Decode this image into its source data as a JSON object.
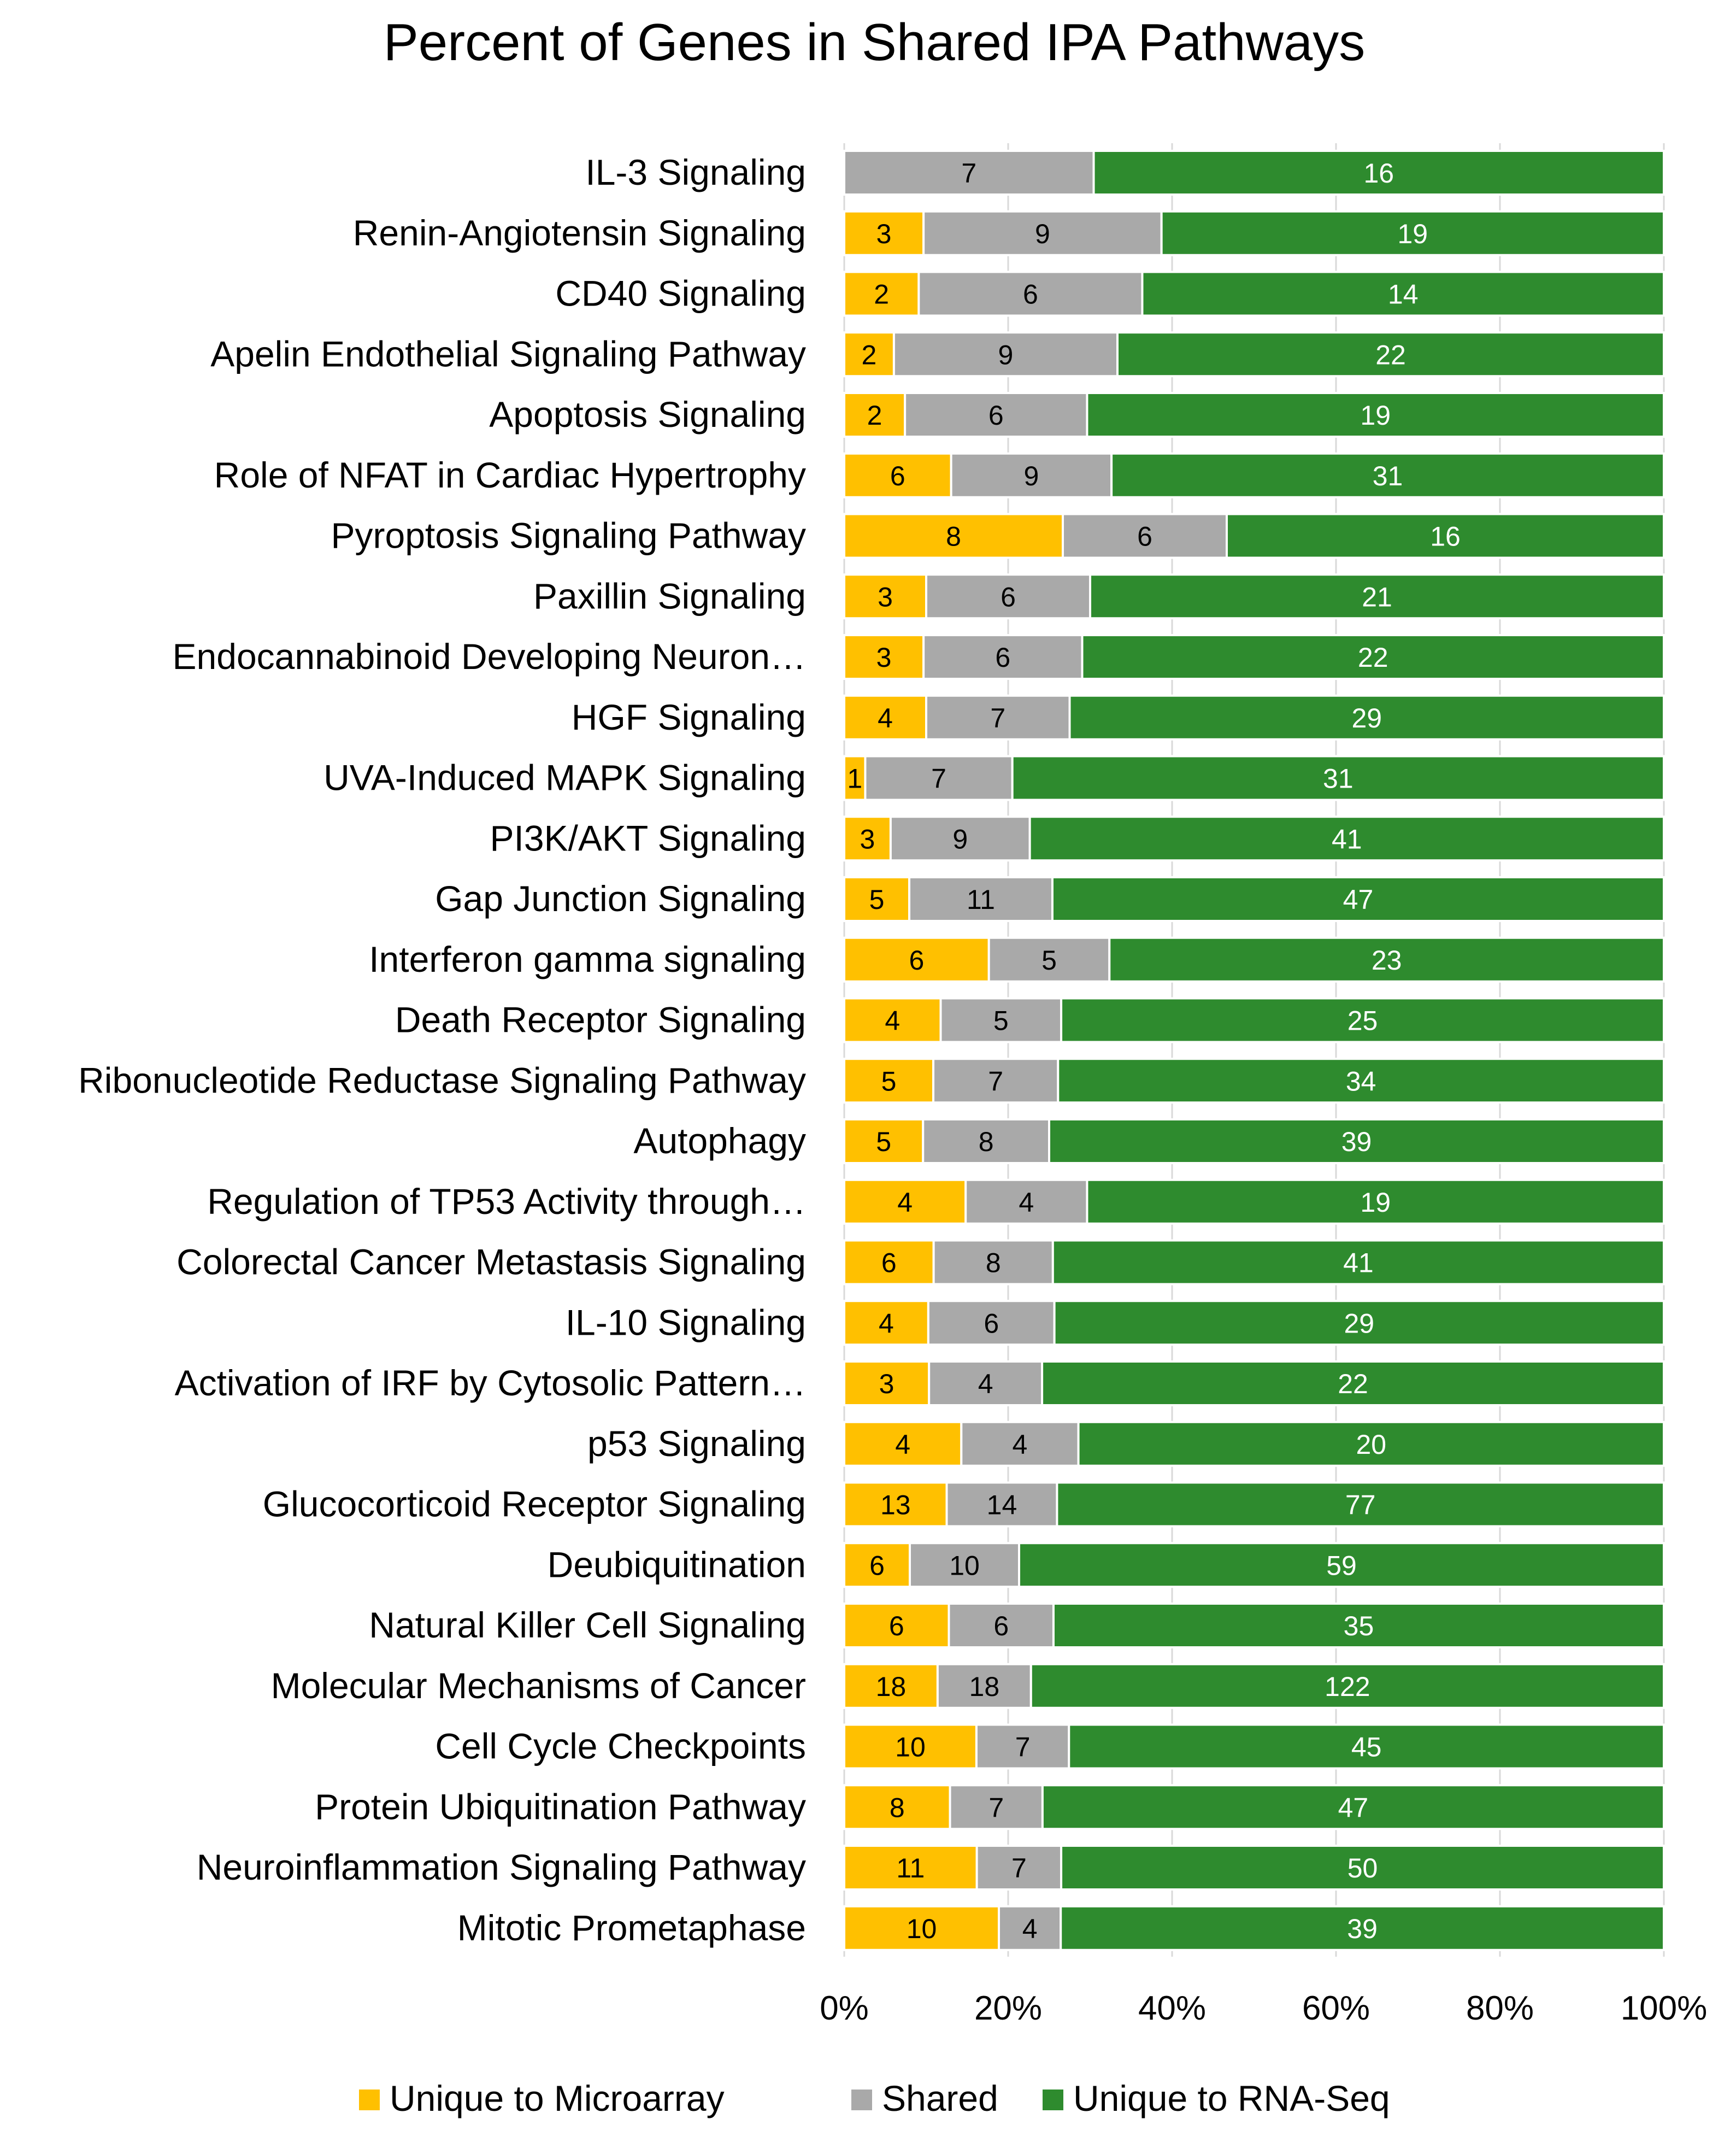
{
  "chart_data": {
    "type": "bar",
    "orientation": "horizontal",
    "stacked": "percent",
    "title": "Percent of Genes in Shared IPA Pathways",
    "xlabel": "",
    "ylabel": "",
    "xlim": [
      0,
      100
    ],
    "x_ticks": [
      "0%",
      "20%",
      "40%",
      "60%",
      "80%",
      "100%"
    ],
    "legend_position": "bottom",
    "grid": true,
    "colors": {
      "Unique to Microarray": "#FFC000",
      "Shared": "#A9A9A9",
      "Unique to RNA-Seq": "#2E8B2E",
      "grid": "#D9D9D9",
      "text": "#000000",
      "label_dark": "#000000",
      "label_light": "#FFFFFF"
    },
    "categories": [
      "IL-3 Signaling",
      "Renin-Angiotensin Signaling",
      "CD40 Signaling",
      "Apelin Endothelial Signaling Pathway",
      "Apoptosis Signaling",
      "Role of NFAT in Cardiac Hypertrophy",
      "Pyroptosis Signaling Pathway",
      "Paxillin Signaling",
      "Endocannabinoid Developing Neuron…",
      "HGF Signaling",
      "UVA-Induced MAPK Signaling",
      "PI3K/AKT Signaling",
      "Gap Junction Signaling",
      "Interferon gamma signaling",
      "Death Receptor Signaling",
      "Ribonucleotide Reductase Signaling Pathway",
      "Autophagy",
      "Regulation of TP53 Activity through…",
      "Colorectal Cancer Metastasis Signaling",
      "IL-10 Signaling",
      "Activation of IRF by Cytosolic Pattern…",
      "p53 Signaling",
      "Glucocorticoid Receptor Signaling",
      "Deubiquitination",
      "Natural Killer Cell Signaling",
      "Molecular Mechanisms of Cancer",
      "Cell Cycle Checkpoints",
      "Protein Ubiquitination Pathway",
      "Neuroinflammation Signaling Pathway",
      "Mitotic Prometaphase"
    ],
    "series": [
      {
        "name": "Unique to Microarray",
        "values": [
          0,
          3,
          2,
          2,
          2,
          6,
          8,
          3,
          3,
          4,
          1,
          3,
          5,
          6,
          4,
          5,
          5,
          4,
          6,
          4,
          3,
          4,
          13,
          6,
          6,
          18,
          10,
          8,
          11,
          10
        ]
      },
      {
        "name": "Shared",
        "values": [
          7,
          9,
          6,
          9,
          6,
          9,
          6,
          6,
          6,
          7,
          7,
          9,
          11,
          5,
          5,
          7,
          8,
          4,
          8,
          6,
          4,
          4,
          14,
          10,
          6,
          18,
          7,
          7,
          7,
          4
        ]
      },
      {
        "name": "Unique to RNA-Seq",
        "values": [
          16,
          19,
          14,
          22,
          19,
          31,
          16,
          21,
          22,
          29,
          31,
          41,
          47,
          23,
          25,
          34,
          39,
          19,
          41,
          29,
          22,
          20,
          77,
          59,
          35,
          122,
          45,
          47,
          50,
          39
        ]
      }
    ]
  }
}
